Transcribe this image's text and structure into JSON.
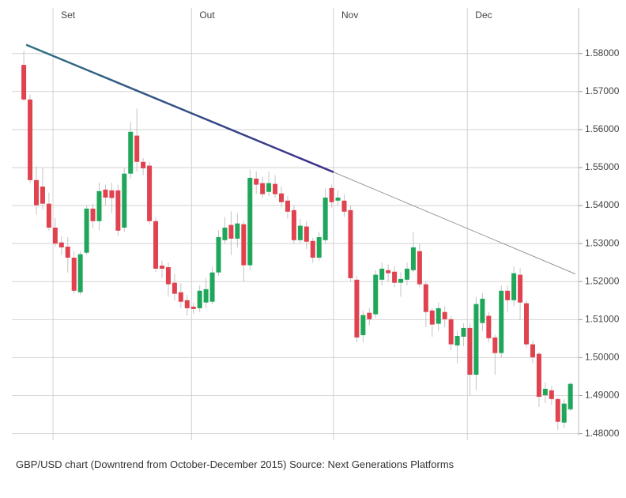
{
  "chart_data": {
    "type": "candlestick",
    "caption": "GBP/USD chart (Downtrend from October-December 2015) Source: Next Generations Platforms",
    "categories": [
      null,
      null,
      null,
      null,
      null,
      null,
      null,
      null,
      null,
      null,
      null,
      null,
      null,
      null,
      null,
      null,
      null,
      null,
      null,
      null,
      null,
      null,
      null,
      null,
      null,
      null,
      null,
      null,
      null,
      null,
      null,
      null,
      null,
      null,
      null,
      null,
      null,
      null,
      null,
      null,
      null,
      null,
      null,
      null,
      null,
      null,
      null,
      null,
      null,
      null,
      null,
      null,
      null,
      null,
      null,
      null,
      null,
      null,
      null,
      null,
      null,
      null,
      null,
      null,
      null,
      null,
      null,
      null,
      null,
      null,
      null,
      null,
      null,
      null,
      null,
      null,
      null,
      null,
      null,
      null,
      null,
      null,
      null,
      null,
      null,
      null,
      null,
      null
    ],
    "open": [
      1.577,
      1.5679,
      1.5467,
      1.545,
      1.5405,
      1.5342,
      1.5303,
      1.5292,
      1.5263,
      1.5172,
      1.5276,
      1.5392,
      1.5359,
      1.5442,
      1.544,
      1.544,
      1.5342,
      1.5484,
      1.5584,
      1.5515,
      1.5505,
      1.5359,
      1.5242,
      1.5238,
      1.5197,
      1.5172,
      1.5151,
      1.5134,
      1.513,
      1.5145,
      1.5147,
      1.5224,
      1.5309,
      1.5349,
      1.5313,
      1.5351,
      1.5243,
      1.5471,
      1.5459,
      1.5436,
      1.5457,
      1.5432,
      1.5413,
      1.5388,
      1.5309,
      1.5345,
      1.5307,
      1.5263,
      1.5309,
      1.5446,
      1.5413,
      1.5413,
      1.5388,
      1.5205,
      1.5059,
      1.5118,
      1.5114,
      1.5205,
      1.523,
      1.5226,
      1.5197,
      1.5205,
      1.523,
      1.528,
      1.5193,
      1.5124,
      1.5089,
      1.512,
      1.5101,
      1.5032,
      1.5055,
      1.5078,
      1.4955,
      1.5091,
      1.511,
      1.5053,
      1.5012,
      1.5176,
      1.5151,
      1.5218,
      1.5143,
      1.5035,
      1.501,
      1.4901,
      1.4914,
      1.4891,
      1.4829,
      1.4864
    ],
    "high": [
      1.5808,
      1.5692,
      1.5504,
      1.55,
      1.5434,
      1.5367,
      1.532,
      1.5317,
      1.528,
      1.528,
      1.54,
      1.5405,
      1.546,
      1.5455,
      1.546,
      1.5455,
      1.55,
      1.562,
      1.5655,
      1.5525,
      1.5515,
      1.537,
      1.5255,
      1.525,
      1.522,
      1.5195,
      1.5165,
      1.5145,
      1.519,
      1.521,
      1.524,
      1.5335,
      1.537,
      1.5385,
      1.538,
      1.536,
      1.5495,
      1.549,
      1.5475,
      1.549,
      1.548,
      1.545,
      1.5425,
      1.54,
      1.5365,
      1.536,
      1.5315,
      1.533,
      1.5445,
      1.5455,
      1.544,
      1.543,
      1.54,
      1.5215,
      1.5125,
      1.513,
      1.523,
      1.525,
      1.5245,
      1.524,
      1.5225,
      1.525,
      1.533,
      1.53,
      1.52,
      1.513,
      1.5145,
      1.5135,
      1.511,
      1.507,
      1.509,
      1.509,
      1.516,
      1.517,
      1.512,
      1.506,
      1.519,
      1.519,
      1.524,
      1.5235,
      1.515,
      1.5045,
      1.5015,
      1.4935,
      1.4925,
      1.4895,
      1.489,
      1.4935
    ],
    "low": [
      1.5675,
      1.5459,
      1.5376,
      1.539,
      1.5334,
      1.5292,
      1.527,
      1.5224,
      1.5168,
      1.5165,
      1.527,
      1.534,
      1.5335,
      1.54,
      1.538,
      1.532,
      1.533,
      1.547,
      1.549,
      1.548,
      1.535,
      1.5225,
      1.521,
      1.516,
      1.515,
      1.513,
      1.511,
      1.5115,
      1.512,
      1.513,
      1.514,
      1.5215,
      1.53,
      1.527,
      1.529,
      1.52,
      1.523,
      1.543,
      1.542,
      1.5425,
      1.542,
      1.5395,
      1.5365,
      1.53,
      1.53,
      1.5285,
      1.525,
      1.5255,
      1.53,
      1.5395,
      1.54,
      1.537,
      1.52,
      1.504,
      1.504,
      1.5085,
      1.5105,
      1.519,
      1.52,
      1.5185,
      1.516,
      1.519,
      1.5225,
      1.5185,
      1.508,
      1.5055,
      1.507,
      1.508,
      1.502,
      1.4985,
      1.503,
      1.49,
      1.4915,
      1.507,
      1.504,
      1.4955,
      1.5,
      1.512,
      1.5135,
      1.51,
      1.5025,
      1.4985,
      1.487,
      1.488,
      1.4875,
      1.481,
      1.4815,
      1.486
    ],
    "close": [
      1.5679,
      1.5467,
      1.5401,
      1.5405,
      1.5342,
      1.53,
      1.529,
      1.5263,
      1.5176,
      1.5272,
      1.5392,
      1.5359,
      1.5438,
      1.5421,
      1.542,
      1.5334,
      1.5484,
      1.5594,
      1.5515,
      1.5498,
      1.5359,
      1.5234,
      1.5234,
      1.5193,
      1.5168,
      1.5147,
      1.513,
      1.5128,
      1.5176,
      1.518,
      1.5224,
      1.5317,
      1.5342,
      1.5313,
      1.5353,
      1.5243,
      1.5473,
      1.5455,
      1.543,
      1.5459,
      1.543,
      1.5409,
      1.5384,
      1.5309,
      1.5347,
      1.5305,
      1.5263,
      1.5317,
      1.5421,
      1.5409,
      1.5421,
      1.5384,
      1.5209,
      1.5053,
      1.5112,
      1.5101,
      1.5218,
      1.5234,
      1.5222,
      1.5197,
      1.5207,
      1.5234,
      1.529,
      1.5193,
      1.512,
      1.5087,
      1.513,
      1.5101,
      1.5035,
      1.5057,
      1.5078,
      1.4955,
      1.5141,
      1.5155,
      1.5051,
      1.5012,
      1.5176,
      1.5151,
      1.5222,
      1.5145,
      1.5035,
      1.5001,
      1.4897,
      1.4918,
      1.4891,
      1.4831,
      1.4879,
      1.4931
    ],
    "up_color": "#1fa65a",
    "down_color": "#e0424f",
    "wick_color": "#c4c4c4",
    "xlim": [
      -1.9,
      88.3
    ],
    "xticks": [
      {
        "value": 4.65,
        "label": "Set"
      },
      {
        "value": 26.7,
        "label": "Out"
      },
      {
        "value": 49.3,
        "label": "Nov"
      },
      {
        "value": 70.6,
        "label": "Dec"
      }
    ],
    "ylim": [
      1.4795,
      1.592
    ],
    "yticks": [
      {
        "value": 1.48,
        "label": "1.48000"
      },
      {
        "value": 1.49,
        "label": "1.49000"
      },
      {
        "value": 1.5,
        "label": "1.50000"
      },
      {
        "value": 1.51,
        "label": "1.51000"
      },
      {
        "value": 1.52,
        "label": "1.52000"
      },
      {
        "value": 1.53,
        "label": "1.53000"
      },
      {
        "value": 1.54,
        "label": "1.54000"
      },
      {
        "value": 1.55,
        "label": "1.55000"
      },
      {
        "value": 1.56,
        "label": "1.56000"
      },
      {
        "value": 1.57,
        "label": "1.57000"
      },
      {
        "value": 1.58,
        "label": "1.58000"
      }
    ],
    "grid": true,
    "trendline": {
      "x": [
        0.38,
        49.3
      ],
      "y": [
        1.5823,
        1.5488
      ],
      "color": "#34408a"
    },
    "trend_extension": {
      "x": [
        49.3,
        87.8
      ],
      "y": [
        1.5488,
        1.522
      ],
      "color": "#999999"
    }
  }
}
